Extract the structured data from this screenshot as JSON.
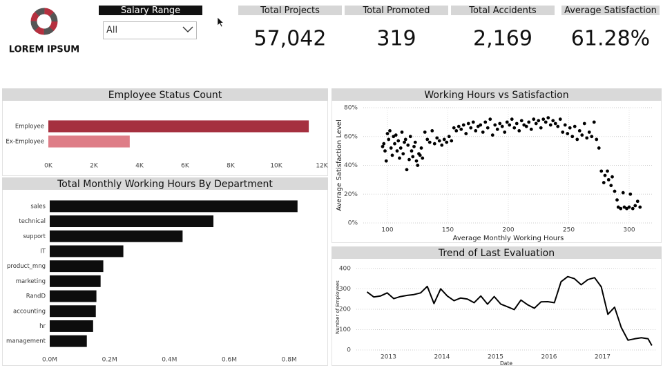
{
  "header": {
    "logo_text": "LOREM IPSUM"
  },
  "slicer": {
    "title": "Salary Range",
    "selected": "All"
  },
  "kpis": [
    {
      "label": "Total Projects",
      "value": 57042,
      "value_label": "57,042"
    },
    {
      "label": "Total Promoted",
      "value": 319,
      "value_label": "319"
    },
    {
      "label": "Total Accidents",
      "value": 2169,
      "value_label": "2,169"
    },
    {
      "label": "Average Satisfaction",
      "value": 61.28,
      "value_label": "61.28%"
    }
  ],
  "chart_data": [
    {
      "type": "hbar",
      "title": "Employee Status Count",
      "categories": [
        "Employee",
        "Ex-Employee"
      ],
      "values": [
        11428,
        3571
      ],
      "colors": [
        "#a5303f",
        "#de7d87"
      ],
      "xlim": [
        0,
        12000
      ],
      "xticks": [
        {
          "value": 0,
          "label": "0K"
        },
        {
          "value": 2000,
          "label": "2K"
        },
        {
          "value": 4000,
          "label": "4K"
        },
        {
          "value": 6000,
          "label": "6K"
        },
        {
          "value": 8000,
          "label": "8K"
        },
        {
          "value": 10000,
          "label": "10K"
        },
        {
          "value": 12000,
          "label": "12K"
        }
      ],
      "grid": false
    },
    {
      "type": "hbar",
      "title": "Total Monthly Working Hours By Department",
      "categories": [
        "sales",
        "technical",
        "support",
        "IT",
        "product_mng",
        "marketing",
        "RandD",
        "accounting",
        "hr",
        "management"
      ],
      "values": [
        828000,
        547000,
        444000,
        246000,
        179000,
        170000,
        156000,
        154000,
        145000,
        124000
      ],
      "color": "#0d0d0d",
      "xlim": [
        0,
        900000
      ],
      "xticks": [
        {
          "value": 0,
          "label": "0.0M"
        },
        {
          "value": 200000,
          "label": "0.2M"
        },
        {
          "value": 400000,
          "label": "0.4M"
        },
        {
          "value": 600000,
          "label": "0.6M"
        },
        {
          "value": 800000,
          "label": "0.8M"
        }
      ],
      "grid": false
    },
    {
      "type": "scatter",
      "title": "Working Hours vs Satisfaction",
      "x_label": "Average Monthly Working Hours",
      "y_label": "Average Satisfaction Level",
      "x": [
        96,
        97,
        98,
        99,
        100,
        101,
        102,
        103,
        104,
        105,
        106,
        107,
        108,
        109,
        110,
        111,
        112,
        113,
        114,
        115,
        116,
        117,
        118,
        119,
        120,
        121,
        122,
        123,
        124,
        125,
        126,
        127,
        128,
        129,
        131,
        133,
        135,
        137,
        139,
        141,
        143,
        145,
        147,
        149,
        151,
        153,
        155,
        157,
        159,
        161,
        163,
        165,
        167,
        169,
        171,
        173,
        175,
        177,
        179,
        181,
        183,
        185,
        187,
        189,
        191,
        193,
        195,
        197,
        199,
        201,
        203,
        205,
        207,
        209,
        211,
        213,
        215,
        217,
        219,
        221,
        223,
        225,
        227,
        229,
        231,
        233,
        235,
        237,
        239,
        241,
        243,
        245,
        247,
        249,
        251,
        253,
        255,
        257,
        259,
        261,
        263,
        265,
        267,
        269,
        271,
        273,
        275,
        277,
        279,
        280,
        282,
        283,
        285,
        286,
        288,
        290,
        291,
        293,
        295,
        296,
        298,
        300,
        301,
        303,
        305,
        307,
        309
      ],
      "values": [
        53,
        55,
        50,
        43,
        62,
        58,
        64,
        52,
        47,
        60,
        55,
        61,
        50,
        57,
        45,
        52,
        63,
        48,
        56,
        58,
        37,
        54,
        44,
        60,
        50,
        46,
        53,
        56,
        43,
        40,
        48,
        47,
        52,
        45,
        63,
        58,
        56,
        64,
        55,
        59,
        57,
        54,
        58,
        56,
        60,
        57,
        66,
        64,
        67,
        65,
        68,
        62,
        69,
        66,
        70,
        64,
        67,
        68,
        63,
        70,
        66,
        72,
        61,
        68,
        65,
        69,
        67,
        63,
        70,
        68,
        72,
        66,
        69,
        64,
        71,
        68,
        67,
        70,
        65,
        72,
        69,
        71,
        66,
        72,
        70,
        73,
        68,
        71,
        69,
        67,
        72,
        63,
        68,
        62,
        66,
        60,
        67,
        58,
        64,
        61,
        69,
        59,
        63,
        60,
        70,
        58,
        52,
        36,
        28,
        33,
        36,
        30,
        26,
        32,
        22,
        16,
        11,
        10,
        21,
        11,
        10,
        11,
        20,
        10,
        12,
        15,
        11
      ],
      "color": "#000000",
      "xlim": [
        80,
        320
      ],
      "xticks": [
        100,
        150,
        200,
        250,
        300
      ],
      "ylim": [
        0,
        80
      ],
      "yticks": [
        {
          "value": 0,
          "label": "0%"
        },
        {
          "value": 20,
          "label": "20%"
        },
        {
          "value": 40,
          "label": "40%"
        },
        {
          "value": 60,
          "label": "60%"
        },
        {
          "value": 80,
          "label": "80%"
        }
      ],
      "grid": true
    },
    {
      "type": "line",
      "title": "Trend of Last Evaluation",
      "x_label": "Date",
      "y_label": "Number of Employees",
      "x": [
        2012.6,
        2012.725,
        2012.85,
        2012.975,
        2013.1,
        2013.225,
        2013.35,
        2013.475,
        2013.6,
        2013.725,
        2013.85,
        2013.975,
        2014.1,
        2014.225,
        2014.35,
        2014.475,
        2014.6,
        2014.725,
        2014.85,
        2014.975,
        2015.1,
        2015.225,
        2015.35,
        2015.475,
        2015.6,
        2015.725,
        2015.85,
        2015.975,
        2016.1,
        2016.225,
        2016.35,
        2016.475,
        2016.6,
        2016.725,
        2016.85,
        2016.975,
        2017.1,
        2017.225,
        2017.35,
        2017.475,
        2017.6,
        2017.725,
        2017.85,
        2017.92
      ],
      "values": [
        285,
        260,
        265,
        280,
        252,
        262,
        268,
        272,
        280,
        312,
        228,
        300,
        265,
        242,
        255,
        250,
        232,
        265,
        225,
        262,
        225,
        212,
        198,
        245,
        222,
        205,
        236,
        237,
        232,
        335,
        360,
        350,
        320,
        345,
        355,
        310,
        175,
        210,
        110,
        48,
        55,
        60,
        55,
        22
      ],
      "color": "#000000",
      "xlim": [
        2012.4,
        2018.0
      ],
      "xticks": [
        2013,
        2014,
        2015,
        2016,
        2017
      ],
      "ylim": [
        0,
        420
      ],
      "yticks": [
        0,
        100,
        200,
        300,
        400
      ],
      "grid": true
    }
  ]
}
